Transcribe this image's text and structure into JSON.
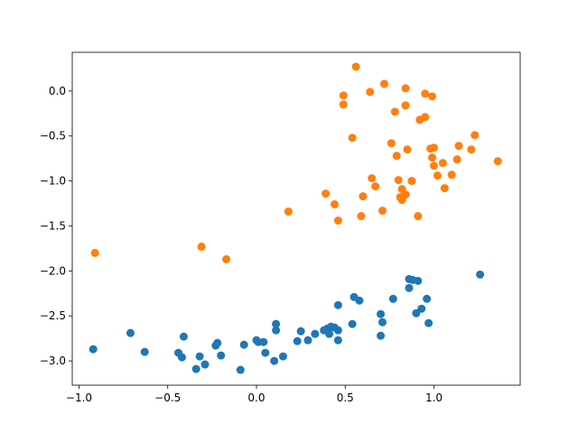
{
  "chart_data": {
    "type": "scatter",
    "xlim": [
      -1.038,
      1.486
    ],
    "ylim": [
      -3.27,
      0.43
    ],
    "xticks": [
      {
        "value": -1,
        "label": "−1.0"
      },
      {
        "value": -0.5,
        "label": "−0.5"
      },
      {
        "value": 0,
        "label": "0.0"
      },
      {
        "value": 0.5,
        "label": "0.5"
      },
      {
        "value": 1,
        "label": "1.0"
      }
    ],
    "yticks": [
      {
        "value": 0,
        "label": "0.0"
      },
      {
        "value": -0.5,
        "label": "−0.5"
      },
      {
        "value": -1,
        "label": "−1.0"
      },
      {
        "value": -1.5,
        "label": "−1.5"
      },
      {
        "value": -2,
        "label": "−2.0"
      },
      {
        "value": -2.5,
        "label": "−2.5"
      },
      {
        "value": -3,
        "label": "−3.0"
      }
    ],
    "series": [
      {
        "color": "#1f77b4",
        "x": [
          -0.92,
          -0.71,
          -0.63,
          -0.44,
          -0.42,
          -0.41,
          -0.34,
          -0.32,
          -0.29,
          -0.23,
          -0.22,
          -0.2,
          -0.09,
          -0.07,
          0.0,
          0.01,
          0.04,
          0.05,
          0.1,
          0.11,
          0.11,
          0.15,
          0.23,
          0.25,
          0.29,
          0.33,
          0.38,
          0.4,
          0.41,
          0.42,
          0.44,
          0.46,
          0.46,
          0.46,
          0.54,
          0.55,
          0.58,
          0.7,
          0.7,
          0.71,
          0.77,
          0.86,
          0.86,
          0.88,
          0.91,
          0.9,
          0.93,
          0.96,
          0.97,
          1.26
        ],
        "y": [
          -2.87,
          -2.69,
          -2.9,
          -2.91,
          -2.96,
          -2.73,
          -3.09,
          -2.95,
          -3.04,
          -2.83,
          -2.8,
          -2.94,
          -3.1,
          -2.82,
          -2.77,
          -2.79,
          -2.79,
          -2.91,
          -3.0,
          -2.59,
          -2.66,
          -2.95,
          -2.78,
          -2.67,
          -2.77,
          -2.7,
          -2.66,
          -2.64,
          -2.7,
          -2.62,
          -2.63,
          -2.66,
          -2.38,
          -2.77,
          -2.59,
          -2.29,
          -2.33,
          -2.72,
          -2.48,
          -2.57,
          -2.31,
          -2.09,
          -2.19,
          -2.1,
          -2.11,
          -2.47,
          -2.42,
          -2.31,
          -2.58,
          -2.04
        ]
      },
      {
        "color": "#ff7f0e",
        "x": [
          -0.91,
          -0.31,
          -0.17,
          0.18,
          0.39,
          0.44,
          0.46,
          0.56,
          0.49,
          0.49,
          0.54,
          0.6,
          0.59,
          0.64,
          0.65,
          0.67,
          0.71,
          0.72,
          0.78,
          0.76,
          0.79,
          0.8,
          0.82,
          0.81,
          0.82,
          0.84,
          0.84,
          0.84,
          0.85,
          0.875,
          0.91,
          0.92,
          0.95,
          0.95,
          0.98,
          0.99,
          0.99,
          1.0,
          1.0,
          1.02,
          1.05,
          1.06,
          1.1,
          1.13,
          1.14,
          1.21,
          1.23,
          1.36
        ],
        "y": [
          -1.8,
          -1.73,
          -1.87,
          -1.34,
          -1.14,
          -1.26,
          -1.44,
          0.27,
          -0.05,
          -0.15,
          -0.52,
          -1.17,
          -1.39,
          -0.01,
          -0.97,
          -1.06,
          -1.33,
          0.08,
          -0.23,
          -0.58,
          -0.72,
          -0.99,
          -1.09,
          -1.18,
          -1.21,
          0.03,
          -0.16,
          -1.15,
          -0.65,
          -1.0,
          -1.39,
          -0.32,
          -0.03,
          -0.29,
          -0.64,
          -0.74,
          -0.06,
          -0.63,
          -0.83,
          -0.94,
          -0.8,
          -1.08,
          -0.93,
          -0.76,
          -0.61,
          -0.65,
          -0.49,
          -0.78
        ]
      }
    ]
  }
}
